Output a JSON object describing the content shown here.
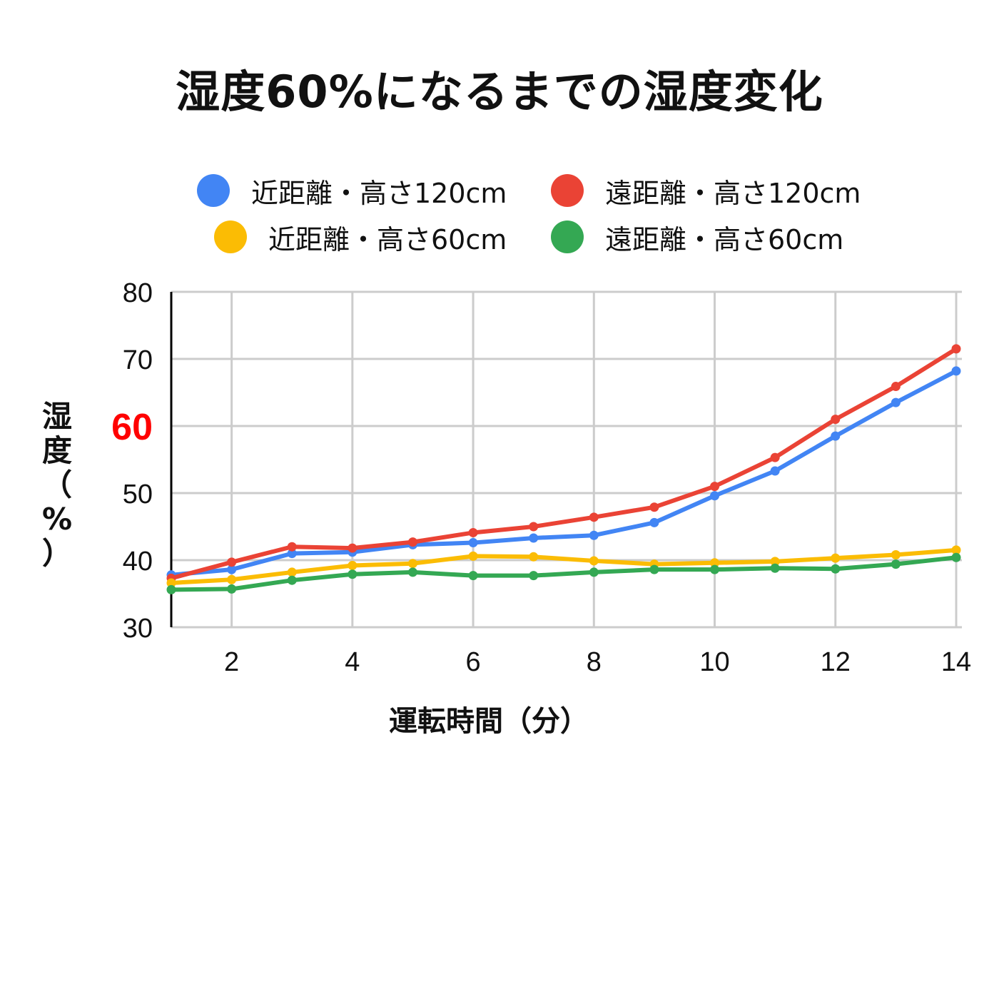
{
  "chart_data": {
    "type": "line",
    "title": "湿度60%になるまでの湿度変化",
    "xlabel": "運転時間（分）",
    "ylabel_chars": [
      "湿",
      "度",
      "（",
      "%",
      "）"
    ],
    "xlim": [
      1,
      14
    ],
    "ylim": [
      30,
      80
    ],
    "xticks": [
      "2",
      "4",
      "6",
      "8",
      "10",
      "12",
      "14"
    ],
    "yticks": [
      "30",
      "40",
      "50",
      "60",
      "70",
      "80"
    ],
    "highlight_ytick": "60",
    "highlight_color": "#ff0000",
    "grid": true,
    "legend_position": "top",
    "x": [
      1,
      2,
      3,
      4,
      5,
      6,
      7,
      8,
      9,
      10,
      11,
      12,
      13,
      14
    ],
    "series": [
      {
        "name": "近距離・高さ120cm",
        "color": "#4285f4",
        "values": [
          37.8,
          38.6,
          41.0,
          41.2,
          42.3,
          42.6,
          43.3,
          43.7,
          45.6,
          49.6,
          53.3,
          58.5,
          63.5,
          68.2
        ]
      },
      {
        "name": "遠距離・高さ120cm",
        "color": "#ea4335",
        "values": [
          37.3,
          39.7,
          42.0,
          41.8,
          42.7,
          44.1,
          45.0,
          46.4,
          47.9,
          51.0,
          55.3,
          61.0,
          65.9,
          71.5
        ]
      },
      {
        "name": "近距離・高さ60cm",
        "color": "#fbbc04",
        "values": [
          36.6,
          37.1,
          38.2,
          39.2,
          39.5,
          40.6,
          40.5,
          39.9,
          39.4,
          39.6,
          39.8,
          40.3,
          40.8,
          41.5
        ]
      },
      {
        "name": "遠距離・高さ60cm",
        "color": "#34a853",
        "values": [
          35.6,
          35.7,
          37.0,
          37.9,
          38.2,
          37.7,
          37.7,
          38.2,
          38.6,
          38.6,
          38.8,
          38.7,
          39.4,
          40.4
        ]
      }
    ]
  }
}
